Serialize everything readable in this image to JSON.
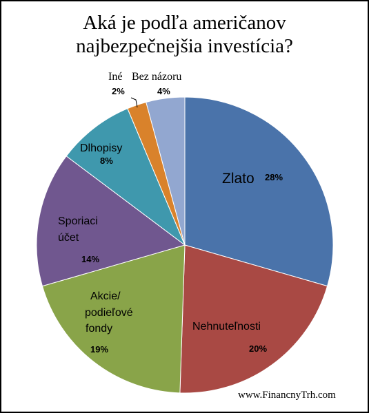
{
  "title_line1": "Aká je podľa američanov",
  "title_line2": "najbezpečnejšia investícia?",
  "source": "www.FinancnyTrh.com",
  "chart_data": {
    "type": "pie",
    "title": "Aká je podľa američanov najbezpečnejšia investícia?",
    "slices": [
      {
        "name": "Zlato",
        "value": 28,
        "pct_label": "28%",
        "color": "#4a73aa"
      },
      {
        "name": "Nehnuteľnosti",
        "value": 20,
        "pct_label": "20%",
        "color": "#a94944"
      },
      {
        "name": "Akcie/ podieľové fondy",
        "label_lines": [
          "Akcie/",
          "podieľové",
          "fondy"
        ],
        "value": 19,
        "pct_label": "19%",
        "color": "#89a449"
      },
      {
        "name": "Sporiaci účet",
        "label_lines": [
          "Sporiaci",
          "účet"
        ],
        "value": 14,
        "pct_label": "14%",
        "color": "#70578f"
      },
      {
        "name": "Dlhopisy",
        "value": 8,
        "pct_label": "8%",
        "color": "#3f98ad"
      },
      {
        "name": "Iné",
        "value": 2,
        "pct_label": "2%",
        "color": "#d9822b"
      },
      {
        "name": "Bez názoru",
        "value": 4,
        "pct_label": "4%",
        "color": "#92a7d0"
      }
    ]
  }
}
